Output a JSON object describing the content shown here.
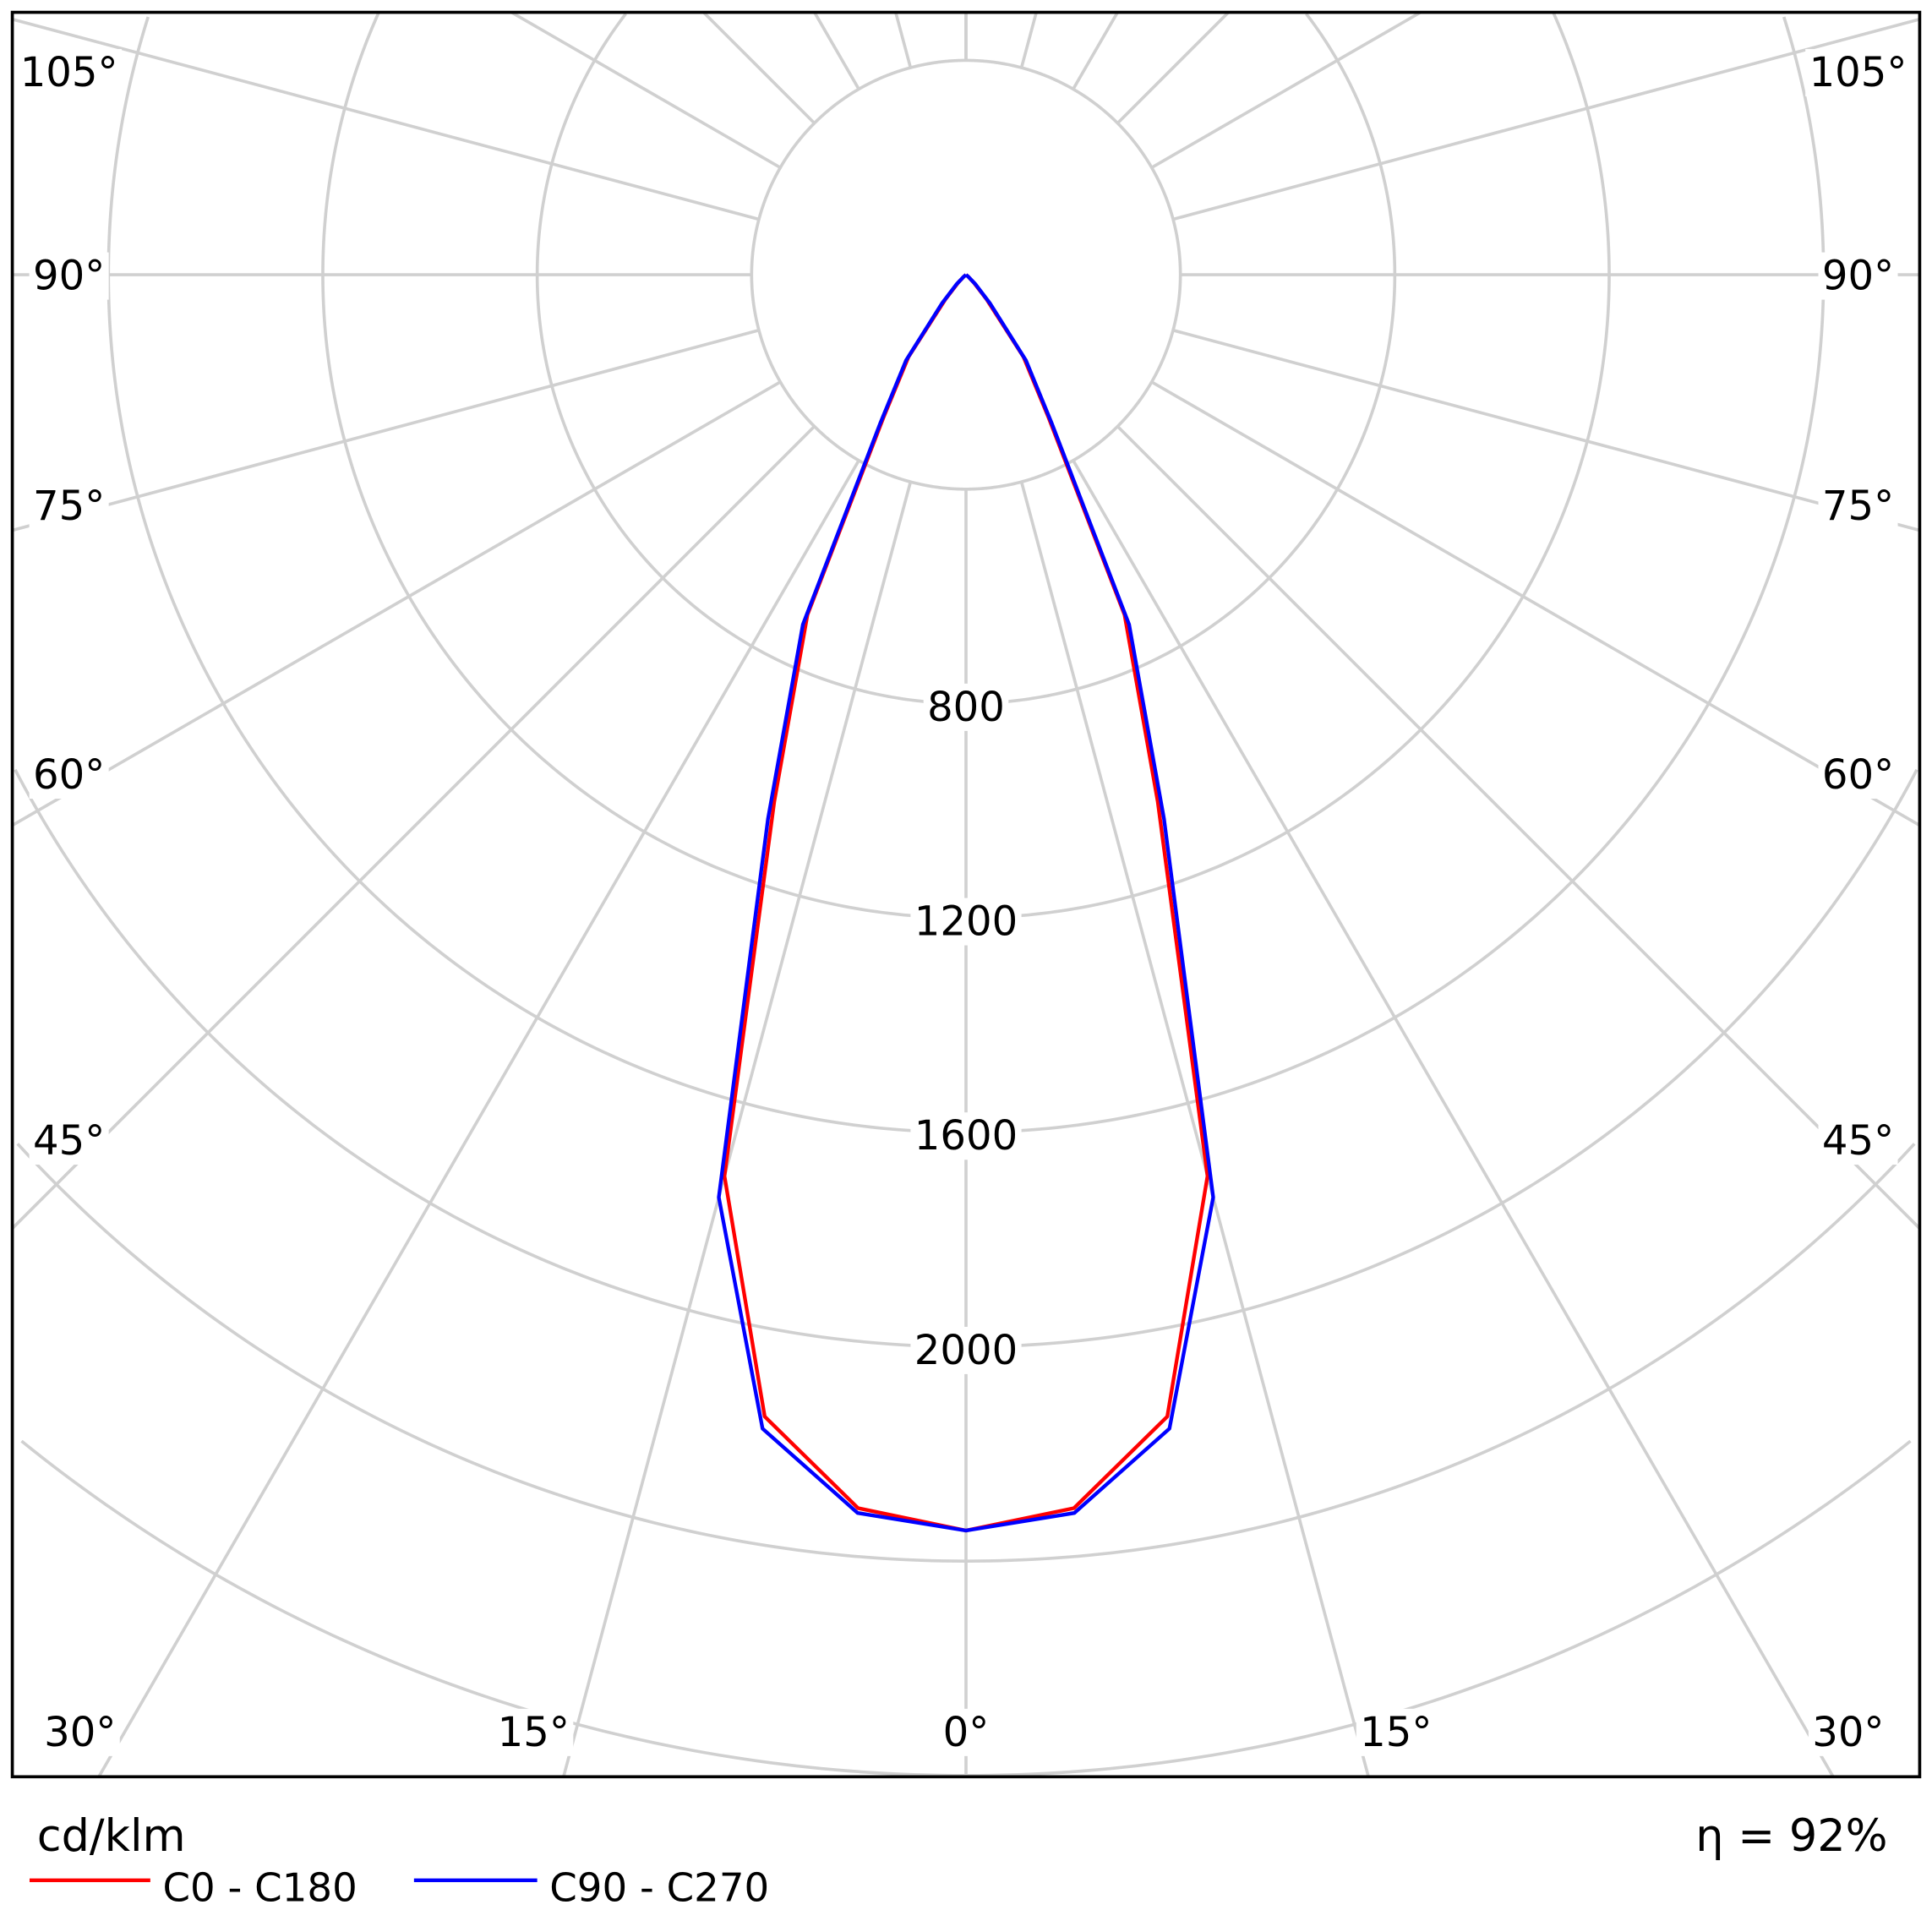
{
  "chart_data": {
    "type": "polar",
    "unit_label": "cd/klm",
    "efficiency_label": "η = 92%",
    "radial_ticks": [
      800,
      1200,
      1600,
      2000
    ],
    "radial_grid": [
      400,
      800,
      1200,
      1600,
      2000,
      2400,
      2800
    ],
    "angle_labels": {
      "left": [
        "105°",
        "90°",
        "75°",
        "60°",
        "45°",
        "30°"
      ],
      "bottom": [
        "15°",
        "0°",
        "15°"
      ],
      "right": [
        "105°",
        "90°",
        "75°",
        "60°",
        "45°",
        "30°"
      ]
    },
    "angles": [
      0,
      5,
      10,
      15,
      20,
      25,
      30,
      35,
      40,
      45,
      50,
      60,
      75,
      90
    ],
    "series": [
      {
        "name": "C0 - C180",
        "color": "#ff0000",
        "values": [
          2343,
          2310,
          2163,
          1741,
          1046,
          700,
          309,
          187,
          60,
          20,
          5,
          0,
          0,
          0
        ]
      },
      {
        "name": "C90 - C270",
        "color": "#0000ff",
        "values": [
          2343,
          2319,
          2186,
          1782,
          1080,
          720,
          320,
          195,
          70,
          25,
          5,
          0,
          0,
          0
        ]
      }
    ],
    "grid": true,
    "legend_position": "bottom-left"
  }
}
